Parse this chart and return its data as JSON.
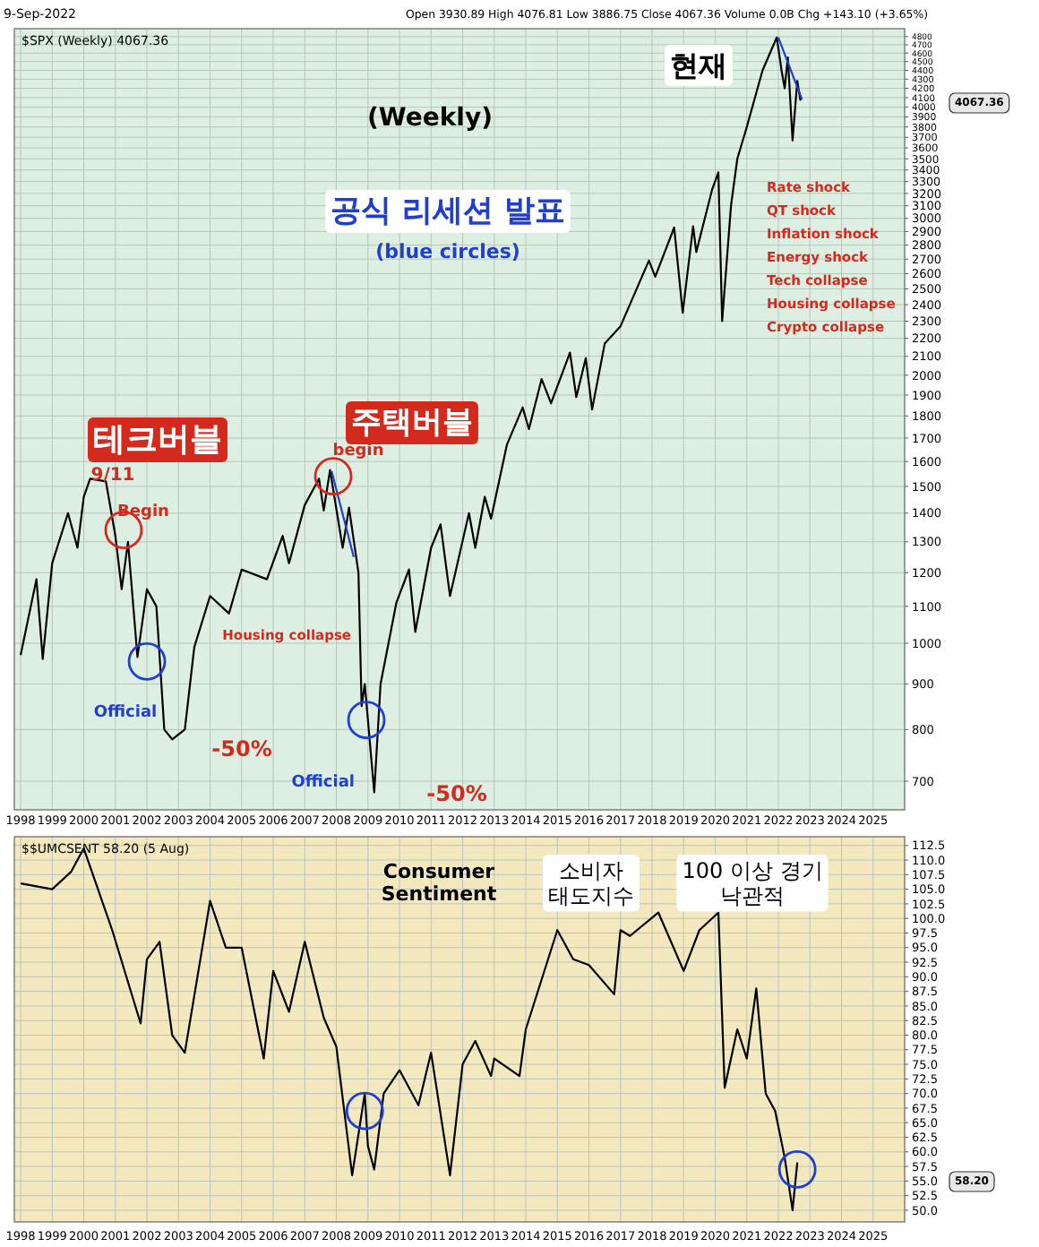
{
  "chart_data": [
    {
      "type": "line",
      "title": "(Weekly)",
      "subtitle": "Open 3930.89 High 4076.81 Low 3886.75 Close 4067.36 Volume 0.0B Chg +143.10 (+3.65%)",
      "log": "y",
      "grid": true,
      "xlim": [
        1997.8,
        2026.0
      ],
      "ylim": [
        650,
        4900
      ],
      "xticks": [
        1998,
        1999,
        2000,
        2001,
        2002,
        2003,
        2004,
        2005,
        2006,
        2007,
        2008,
        2009,
        2010,
        2011,
        2012,
        2013,
        2014,
        2015,
        2016,
        2017,
        2018,
        2019,
        2020,
        2021,
        2022,
        2023,
        2024,
        2025
      ],
      "yticks": [
        700,
        800,
        900,
        1000,
        1100,
        1200,
        1300,
        1400,
        1500,
        1600,
        1700,
        1800,
        1900,
        2000,
        2100,
        2200,
        2300,
        2400,
        2500,
        2600,
        2700,
        2800,
        2900,
        3000,
        3100,
        3200,
        3300,
        3400,
        3500,
        3600,
        3700,
        3800,
        3900,
        4000,
        4100,
        4200,
        4300,
        4400,
        4500,
        4600,
        4700,
        4800
      ],
      "annotations": [
        "9-Sep-2022",
        "$SPX (Weekly) 4067.36",
        "4067.36",
        "현재",
        "공식 리세션 발표",
        "(blue circles)",
        "테크버블",
        "9/11",
        "Begin",
        "주택버블",
        "begin",
        "Official",
        "Official",
        "-50%",
        "-50%",
        "Housing collapse",
        "Rate shock",
        "QT shock",
        "Inflation shock",
        "Energy shock",
        "Tech collapse",
        "Housing collapse",
        "Crypto collapse"
      ],
      "series": [
        {
          "color": "#000000",
          "x": [
            1998.0,
            1998.5,
            1998.7,
            1999.0,
            1999.5,
            1999.8,
            2000.0,
            2000.2,
            2000.7,
            2001.0,
            2001.2,
            2001.4,
            2001.7,
            2002.0,
            2002.3,
            2002.55,
            2002.8,
            2003.2,
            2003.5,
            2004.0,
            2004.6,
            2005.0,
            2005.8,
            2006.3,
            2006.5,
            2007.0,
            2007.45,
            2007.6,
            2007.8,
            2008.2,
            2008.4,
            2008.7,
            2008.8,
            2008.9,
            2009.2,
            2009.4,
            2009.9,
            2010.3,
            2010.5,
            2011.0,
            2011.3,
            2011.6,
            2012.2,
            2012.4,
            2012.7,
            2012.9,
            2013.4,
            2013.9,
            2014.1,
            2014.5,
            2014.8,
            2015.4,
            2015.6,
            2015.9,
            2016.1,
            2016.5,
            2017.0,
            2017.9,
            2018.1,
            2018.7,
            2018.97,
            2019.3,
            2019.4,
            2019.9,
            2020.1,
            2020.22,
            2020.5,
            2020.7,
            2021.0,
            2021.5,
            2021.95,
            2022.1,
            2022.2,
            2022.3,
            2022.45,
            2022.6,
            2022.7
          ],
          "values": [
            970,
            1180,
            960,
            1230,
            1400,
            1280,
            1460,
            1530,
            1520,
            1320,
            1150,
            1300,
            965,
            1150,
            1100,
            800,
            780,
            800,
            990,
            1130,
            1080,
            1210,
            1180,
            1320,
            1230,
            1430,
            1530,
            1410,
            1565,
            1280,
            1420,
            1200,
            850,
            900,
            680,
            900,
            1110,
            1210,
            1030,
            1280,
            1360,
            1130,
            1400,
            1280,
            1460,
            1380,
            1670,
            1840,
            1740,
            1980,
            1860,
            2120,
            1890,
            2090,
            1830,
            2170,
            2270,
            2690,
            2580,
            2930,
            2350,
            2940,
            2750,
            3230,
            3380,
            2300,
            3100,
            3500,
            3800,
            4400,
            4790,
            4400,
            4200,
            4550,
            3670,
            4280,
            4067
          ]
        },
        {
          "type": "line",
          "color": "#1f3fd0",
          "x": [
            2007.85,
            2008.55
          ],
          "values": [
            1560,
            1250
          ]
        },
        {
          "type": "line",
          "color": "#1f3fd0",
          "x": [
            2022.0,
            2022.75
          ],
          "values": [
            4790,
            4080
          ]
        },
        {
          "type": "scatter",
          "marker": "circle",
          "color": "#d42a1e",
          "x": [
            2001.26,
            2007.9
          ],
          "values": [
            1340,
            1540
          ]
        },
        {
          "type": "scatter",
          "marker": "circle",
          "color": "#1f3fd0",
          "x": [
            2002.0,
            2008.95
          ],
          "values": [
            954,
            820
          ]
        }
      ]
    },
    {
      "type": "line",
      "grid": true,
      "xlim": [
        1997.8,
        2026.0
      ],
      "ylim": [
        48,
        114
      ],
      "xticks": [
        1998,
        1999,
        2000,
        2001,
        2002,
        2003,
        2004,
        2005,
        2006,
        2007,
        2008,
        2009,
        2010,
        2011,
        2012,
        2013,
        2014,
        2015,
        2016,
        2017,
        2018,
        2019,
        2020,
        2021,
        2022,
        2023,
        2024,
        2025
      ],
      "yticks": [
        {
          "value": 50,
          "label": "50.0"
        },
        {
          "value": 52.5,
          "label": "52.5"
        },
        {
          "value": 55,
          "label": "55.0"
        },
        {
          "value": 57.5,
          "label": "57.5"
        },
        {
          "value": 60,
          "label": "60.0"
        },
        {
          "value": 62.5,
          "label": "62.5"
        },
        {
          "value": 65,
          "label": "65.0"
        },
        {
          "value": 67.5,
          "label": "67.5"
        },
        {
          "value": 70,
          "label": "70.0"
        },
        {
          "value": 72.5,
          "label": "72.5"
        },
        {
          "value": 75,
          "label": "75.0"
        },
        {
          "value": 77.5,
          "label": "77.5"
        },
        {
          "value": 80,
          "label": "80.0"
        },
        {
          "value": 82.5,
          "label": "82.5"
        },
        {
          "value": 85,
          "label": "85.0"
        },
        {
          "value": 87.5,
          "label": "87.5"
        },
        {
          "value": 90,
          "label": "90.0"
        },
        {
          "value": 92.5,
          "label": "92.5"
        },
        {
          "value": 95,
          "label": "95.0"
        },
        {
          "value": 97.5,
          "label": "97.5"
        },
        {
          "value": 100,
          "label": "100.0"
        },
        {
          "value": 102.5,
          "label": "102.5"
        },
        {
          "value": 105,
          "label": "105.0"
        },
        {
          "value": 107.5,
          "label": "107.5"
        },
        {
          "value": 110,
          "label": "110.0"
        },
        {
          "value": 112.5,
          "label": "112.5"
        }
      ],
      "annotations": [
        "$$UMCSENT 58.20 (5 Aug)",
        "Consumer Sentiment",
        "소비자 태도지수",
        "100 이상 경기 낙관적",
        "58.20"
      ],
      "series": [
        {
          "color": "#000000",
          "x": [
            1998.0,
            1999.0,
            1999.6,
            2000.0,
            2000.9,
            2001.8,
            2002.0,
            2002.4,
            2002.8,
            2003.2,
            2003.6,
            2004.0,
            2004.5,
            2005.0,
            2005.7,
            2006.0,
            2006.5,
            2007.0,
            2007.6,
            2008.0,
            2008.5,
            2008.9,
            2009.0,
            2009.2,
            2009.5,
            2010.0,
            2010.6,
            2011.0,
            2011.6,
            2012.0,
            2012.4,
            2012.9,
            2013.0,
            2013.8,
            2014.0,
            2015.0,
            2015.5,
            2016.0,
            2016.8,
            2017.0,
            2017.3,
            2018.2,
            2019.0,
            2019.5,
            2020.1,
            2020.3,
            2020.7,
            2021.0,
            2021.3,
            2021.6,
            2021.9,
            2022.2,
            2022.45,
            2022.6
          ],
          "values": [
            106,
            105,
            108,
            112,
            98,
            82,
            93,
            96,
            80,
            77,
            90,
            103,
            95,
            95,
            76,
            91,
            84,
            96,
            83,
            78,
            56,
            70,
            61,
            57,
            70,
            74,
            68,
            77,
            56,
            75,
            79,
            73,
            76,
            73,
            81,
            98,
            93,
            92,
            87,
            98,
            97,
            101,
            91,
            98,
            101,
            71,
            81,
            76,
            88,
            70,
            67,
            59,
            50,
            58.2
          ]
        },
        {
          "type": "scatter",
          "marker": "circle",
          "color": "#1f3fd0",
          "x": [
            2008.9,
            2022.6
          ],
          "values": [
            67,
            57
          ]
        }
      ]
    }
  ]
}
